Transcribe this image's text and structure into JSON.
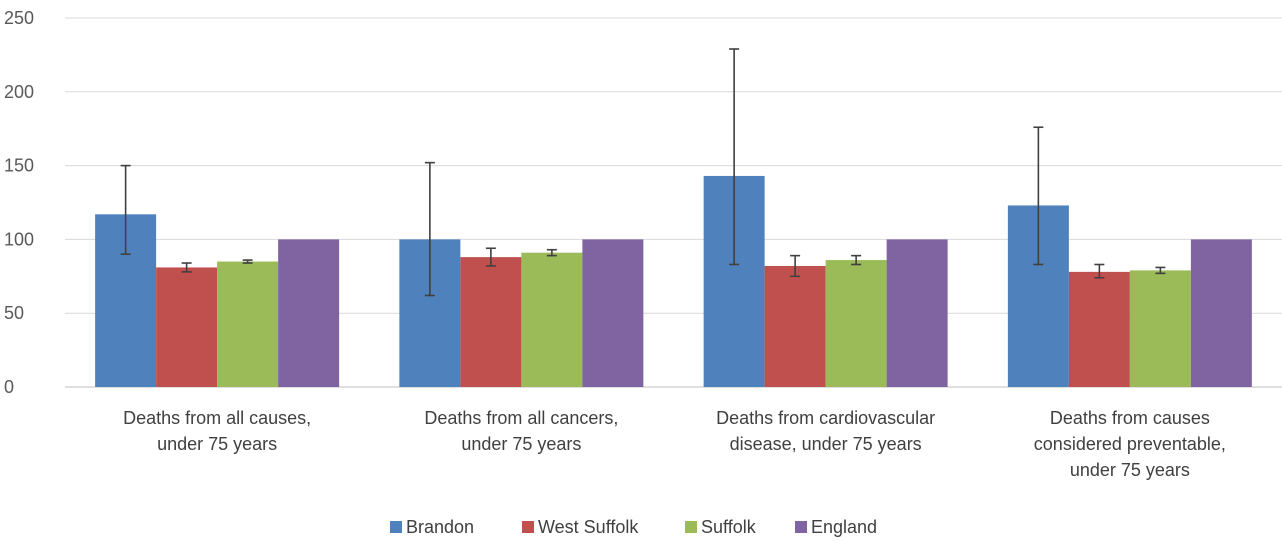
{
  "chart_data": {
    "type": "bar",
    "categories": [
      [
        "Deaths from all causes,",
        "under 75 years"
      ],
      [
        "Deaths from all cancers,",
        "under 75 years"
      ],
      [
        "Deaths from cardiovascular",
        "disease, under 75 years"
      ],
      [
        "Deaths from causes",
        "considered preventable,",
        "under 75 years"
      ]
    ],
    "series": [
      {
        "name": "Brandon",
        "color": "#4f81bd",
        "values": [
          117,
          100,
          143,
          123
        ],
        "err_low": [
          90,
          62,
          83,
          83
        ],
        "err_high": [
          150,
          152,
          229,
          176
        ]
      },
      {
        "name": "West Suffolk",
        "color": "#c0504d",
        "values": [
          81,
          88,
          82,
          78
        ],
        "err_low": [
          78,
          82,
          75,
          74
        ],
        "err_high": [
          84,
          94,
          89,
          83
        ]
      },
      {
        "name": "Suffolk",
        "color": "#9bbb59",
        "values": [
          85,
          91,
          86,
          79
        ],
        "err_low": [
          84,
          89,
          83,
          77
        ],
        "err_high": [
          86,
          93,
          89,
          81
        ]
      },
      {
        "name": "England",
        "color": "#8064a2",
        "values": [
          100,
          100,
          100,
          100
        ],
        "err_low": null,
        "err_high": null
      }
    ],
    "ylim": [
      0,
      250
    ],
    "yticks": [
      0,
      50,
      100,
      150,
      200,
      250
    ],
    "grid": true,
    "legend_position": "bottom",
    "title": "",
    "xlabel": "",
    "ylabel": ""
  }
}
